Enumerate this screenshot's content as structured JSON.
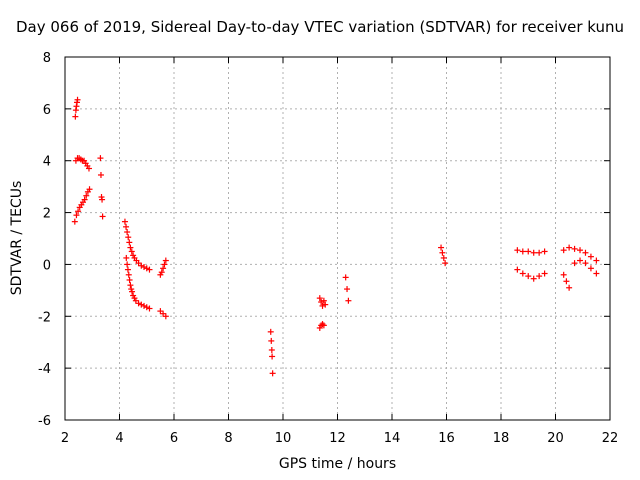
{
  "chart_data": {
    "type": "scatter",
    "title": "Day 066 of 2019, Sidereal Day-to-day VTEC variation (SDTVAR) for receiver kunu",
    "xlabel": "GPS time / hours",
    "ylabel": "SDTVAR / TECUs",
    "xlim": [
      2,
      22
    ],
    "ylim": [
      -6,
      8
    ],
    "xticks": [
      2,
      4,
      6,
      8,
      10,
      12,
      14,
      16,
      18,
      20,
      22
    ],
    "yticks": [
      -6,
      -4,
      -2,
      0,
      2,
      4,
      6,
      8
    ],
    "grid": true,
    "marker": "+",
    "color": "#ff0000",
    "series": [
      {
        "name": "SDTVAR",
        "x": [
          2.38,
          2.4,
          2.42,
          2.44,
          2.46,
          2.4,
          2.46,
          2.52,
          2.58,
          2.64,
          2.7,
          2.76,
          2.82,
          2.88,
          2.36,
          2.42,
          2.48,
          2.54,
          2.6,
          2.66,
          2.72,
          2.78,
          2.84,
          2.9,
          3.3,
          3.32,
          3.34,
          3.36,
          3.38,
          4.2,
          4.24,
          4.28,
          4.32,
          4.36,
          4.4,
          4.45,
          4.5,
          4.55,
          4.62,
          4.7,
          4.8,
          4.9,
          5.0,
          5.1,
          4.25,
          4.28,
          4.31,
          4.34,
          4.37,
          4.4,
          4.43,
          4.46,
          4.5,
          4.55,
          4.6,
          4.7,
          4.8,
          4.9,
          5.0,
          5.1,
          5.5,
          5.55,
          5.6,
          5.65,
          5.7,
          5.5,
          5.6,
          5.7,
          9.55,
          9.57,
          9.59,
          9.6,
          9.62,
          11.35,
          11.4,
          11.45,
          11.5,
          11.55,
          11.35,
          11.4,
          11.45,
          11.5,
          12.3,
          12.35,
          12.4,
          15.8,
          15.85,
          15.9,
          15.95,
          18.6,
          18.8,
          19.0,
          19.2,
          19.4,
          19.6,
          18.6,
          18.8,
          19.0,
          19.2,
          19.4,
          19.6,
          20.3,
          20.5,
          20.7,
          20.9,
          21.1,
          21.3,
          21.5,
          20.3,
          20.4,
          20.5,
          20.7,
          20.9,
          21.1,
          21.3,
          21.5
        ],
        "y": [
          5.7,
          5.95,
          6.1,
          6.25,
          6.35,
          4.0,
          4.1,
          4.1,
          4.05,
          4.0,
          4.0,
          3.9,
          3.8,
          3.7,
          1.65,
          1.9,
          2.05,
          2.2,
          2.3,
          2.4,
          2.5,
          2.65,
          2.8,
          2.9,
          4.1,
          3.45,
          2.6,
          2.5,
          1.85,
          1.65,
          1.45,
          1.25,
          1.05,
          0.85,
          0.65,
          0.5,
          0.35,
          0.25,
          0.15,
          0.05,
          -0.05,
          -0.1,
          -0.15,
          -0.2,
          0.25,
          0.0,
          -0.2,
          -0.4,
          -0.6,
          -0.8,
          -0.95,
          -1.05,
          -1.2,
          -1.3,
          -1.4,
          -1.5,
          -1.55,
          -1.6,
          -1.65,
          -1.7,
          -0.4,
          -0.3,
          -0.15,
          0.0,
          0.15,
          -1.8,
          -1.9,
          -2.0,
          -2.6,
          -2.95,
          -3.3,
          -3.55,
          -4.2,
          -1.3,
          -1.45,
          -1.6,
          -1.4,
          -1.55,
          -2.45,
          -2.35,
          -2.3,
          -2.35,
          -0.5,
          -0.95,
          -1.4,
          0.65,
          0.45,
          0.25,
          0.05,
          0.55,
          0.5,
          0.5,
          0.45,
          0.45,
          0.5,
          -0.2,
          -0.35,
          -0.45,
          -0.55,
          -0.45,
          -0.35,
          0.55,
          0.65,
          0.6,
          0.55,
          0.45,
          0.3,
          0.15,
          -0.4,
          -0.65,
          -0.9,
          0.05,
          0.15,
          0.05,
          -0.15,
          -0.35
        ]
      }
    ]
  }
}
